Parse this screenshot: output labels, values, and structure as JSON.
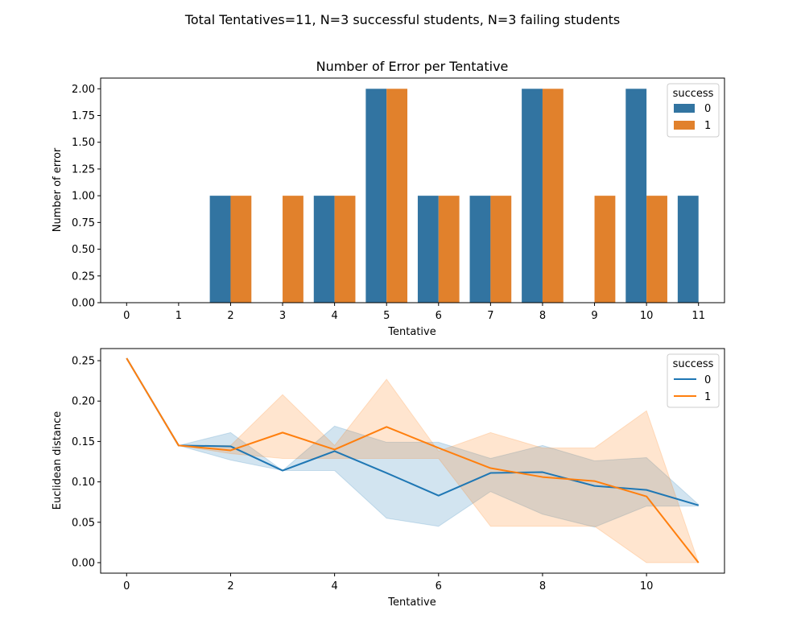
{
  "figure": {
    "suptitle": "Total Tentatives=11, N=3 successful students, N=3 failing students"
  },
  "chart_data": [
    {
      "type": "bar",
      "title": "Number of Error per Tentative",
      "xlabel": "Tentative",
      "ylabel": "Number of error",
      "categories": [
        "0",
        "1",
        "2",
        "3",
        "4",
        "5",
        "6",
        "7",
        "8",
        "9",
        "10",
        "11"
      ],
      "ylim": [
        0,
        2.1
      ],
      "yticks": [
        "0.00",
        "0.25",
        "0.50",
        "0.75",
        "1.00",
        "1.25",
        "1.50",
        "1.75",
        "2.00"
      ],
      "grid": false,
      "legend": {
        "title": "success",
        "position": "top-right"
      },
      "series": [
        {
          "name": "0",
          "color": "#3274a1",
          "values": [
            0,
            0,
            1,
            0,
            1,
            2,
            1,
            1,
            2,
            0,
            2,
            1
          ]
        },
        {
          "name": "1",
          "color": "#e1812c",
          "values": [
            0,
            0,
            1,
            1,
            1,
            2,
            1,
            1,
            2,
            1,
            1,
            0
          ]
        }
      ]
    },
    {
      "type": "line",
      "xlabel": "Tentative",
      "ylabel": "Euclidean distance",
      "x": [
        0,
        1,
        2,
        3,
        4,
        5,
        6,
        7,
        8,
        9,
        10,
        11
      ],
      "xlim": [
        -0.5,
        11.5
      ],
      "ylim": [
        -0.013,
        0.265
      ],
      "xticks": [
        "0",
        "2",
        "4",
        "6",
        "8",
        "10"
      ],
      "yticks": [
        "0.00",
        "0.05",
        "0.10",
        "0.15",
        "0.20",
        "0.25"
      ],
      "grid": false,
      "legend": {
        "title": "success",
        "position": "top-right"
      },
      "series": [
        {
          "name": "0",
          "color": "#1f77b4",
          "band_color": "#1f77b4",
          "values": [
            0.253,
            0.145,
            0.144,
            0.114,
            0.138,
            0.111,
            0.083,
            0.111,
            0.112,
            0.095,
            0.09,
            0.071
          ],
          "ci_low": [
            0.253,
            0.145,
            0.127,
            0.114,
            0.114,
            0.055,
            0.045,
            0.088,
            0.06,
            0.044,
            0.07,
            0.07
          ],
          "ci_high": [
            0.253,
            0.145,
            0.161,
            0.114,
            0.169,
            0.149,
            0.149,
            0.129,
            0.145,
            0.126,
            0.13,
            0.072
          ]
        },
        {
          "name": "1",
          "color": "#ff7f0e",
          "band_color": "#ff7f0e",
          "values": [
            0.253,
            0.145,
            0.139,
            0.161,
            0.14,
            0.168,
            0.142,
            0.117,
            0.106,
            0.101,
            0.082,
            0.0
          ],
          "ci_low": [
            0.253,
            0.145,
            0.135,
            0.129,
            0.129,
            0.129,
            0.129,
            0.045,
            0.045,
            0.045,
            0.0,
            0.0
          ],
          "ci_high": [
            0.253,
            0.145,
            0.145,
            0.208,
            0.145,
            0.227,
            0.138,
            0.161,
            0.142,
            0.142,
            0.188,
            0.0
          ]
        }
      ]
    }
  ]
}
